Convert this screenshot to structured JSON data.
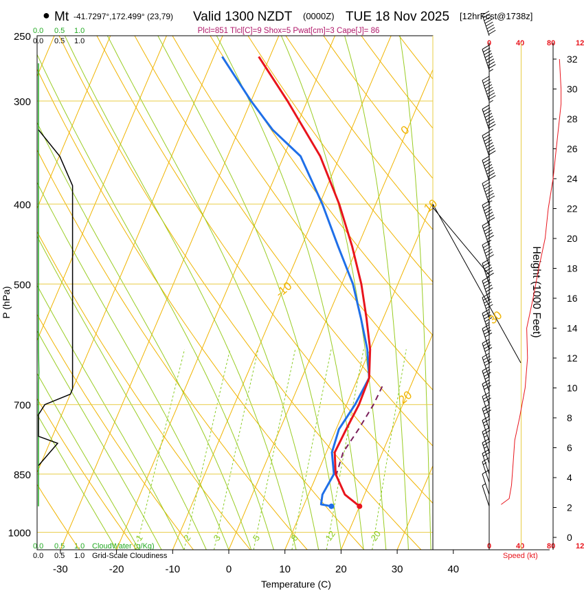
{
  "header": {
    "station_marker": "●",
    "station_code": "Mt",
    "coords": "-41.7297°,172.499° (23,79)",
    "title_valid": "Valid 1300 NZDT",
    "title_utc": "(0000Z)",
    "title_date": "TUE 18 Nov 2025",
    "forecast": "[12hrFcst@1738z]",
    "indices": "Plcl=851 Tlcl[C]=9 Shox=5 Pwat[cm]=3 Cape[J]= 86"
  },
  "left_strip": {
    "cloudwater_ticks": [
      "0.0",
      "0.5",
      "1.0"
    ],
    "cloudiness_ticks": [
      "0.0",
      "0.5",
      "1.0"
    ],
    "cloudwater_label": "CloudWater (g/Kg)",
    "cloudiness_label": "Grid-Scale Cloudiness"
  },
  "wind_panel": {
    "speed_ticks": [
      "0",
      "40",
      "80",
      "12"
    ],
    "speed_label": "Speed (kt)"
  },
  "colors": {
    "temperature": "#e8141c",
    "dewpoint": "#1f6fe8",
    "parcel": "#7a1f5a",
    "isotherm": "#f0b400",
    "dry_adiabat": "#f0b400",
    "moist_adiabat": "#99cc22",
    "mixing_ratio": "#88cc22",
    "cloudwater": "#22aa22",
    "cloudiness": "#000000",
    "wind_speed": "#e8141c",
    "header_indices": "#b0186a"
  },
  "chart_data": {
    "type": "skew-t",
    "xlabel": "Temperature (C)",
    "ylabel": "P (hPa)",
    "y2label": "Height (1000 Feet)",
    "xlim": [
      -35,
      45
    ],
    "ylim": [
      1050,
      250
    ],
    "x_ticks": [
      "-30",
      "-20",
      "-10",
      "0",
      "10",
      "20",
      "30",
      "40"
    ],
    "y_ticks": [
      {
        "p": 250,
        "label": "250"
      },
      {
        "p": 300,
        "label": "300"
      },
      {
        "p": 400,
        "label": "400"
      },
      {
        "p": 500,
        "label": "500"
      },
      {
        "p": 700,
        "label": "700"
      },
      {
        "p": 850,
        "label": "850"
      },
      {
        "p": 1000,
        "label": "1000"
      }
    ],
    "height_ticks_kft": [
      "0",
      "2",
      "4",
      "6",
      "8",
      "10",
      "12",
      "14",
      "16",
      "18",
      "20",
      "22",
      "24",
      "26",
      "28",
      "30",
      "32"
    ],
    "isotherm_labels": [
      {
        "t": -10,
        "label": "-10"
      },
      {
        "t": 0,
        "label": "0"
      },
      {
        "t": 10,
        "label": "10"
      },
      {
        "t": 20,
        "label": "20"
      },
      {
        "t": 30,
        "label": "30"
      }
    ],
    "mixing_ratio_labels": [
      "1",
      "2",
      "3",
      "5",
      "8",
      "12",
      "20"
    ],
    "temperature_series": {
      "name": "Temperature",
      "points": [
        {
          "p": 930,
          "t": 20.0
        },
        {
          "p": 900,
          "t": 16.5
        },
        {
          "p": 850,
          "t": 13.3
        },
        {
          "p": 800,
          "t": 11.5
        },
        {
          "p": 750,
          "t": 11.8
        },
        {
          "p": 700,
          "t": 12.2
        },
        {
          "p": 650,
          "t": 12.0
        },
        {
          "p": 600,
          "t": 10.0
        },
        {
          "p": 550,
          "t": 7.0
        },
        {
          "p": 500,
          "t": 3.5
        },
        {
          "p": 450,
          "t": -1.0
        },
        {
          "p": 400,
          "t": -6.5
        },
        {
          "p": 350,
          "t": -13.5
        },
        {
          "p": 300,
          "t": -23.5
        },
        {
          "p": 265,
          "t": -32.0
        }
      ]
    },
    "dewpoint_series": {
      "name": "Dewpoint",
      "points": [
        {
          "p": 930,
          "t": 15.0
        },
        {
          "p": 925,
          "t": 13.0
        },
        {
          "p": 900,
          "t": 12.5
        },
        {
          "p": 850,
          "t": 13.0
        },
        {
          "p": 800,
          "t": 11.0
        },
        {
          "p": 750,
          "t": 10.5
        },
        {
          "p": 700,
          "t": 11.5
        },
        {
          "p": 650,
          "t": 12.0
        },
        {
          "p": 600,
          "t": 9.5
        },
        {
          "p": 550,
          "t": 6.0
        },
        {
          "p": 500,
          "t": 2.0
        },
        {
          "p": 450,
          "t": -3.5
        },
        {
          "p": 400,
          "t": -9.5
        },
        {
          "p": 350,
          "t": -17.0
        },
        {
          "p": 325,
          "t": -24.0
        },
        {
          "p": 300,
          "t": -30.0
        },
        {
          "p": 265,
          "t": -38.5
        }
      ]
    },
    "parcel_series": {
      "name": "Parcel",
      "points": [
        {
          "p": 855,
          "t": 13.5
        },
        {
          "p": 800,
          "t": 13.0
        },
        {
          "p": 750,
          "t": 14.0
        },
        {
          "p": 700,
          "t": 14.8
        },
        {
          "p": 660,
          "t": 15.0
        }
      ]
    },
    "cloudwater_profile": [
      {
        "p": 930,
        "v": 0.0
      },
      {
        "p": 660,
        "v": 0.0
      },
      {
        "p": 640,
        "v": 0.01
      },
      {
        "p": 600,
        "v": 0.0
      },
      {
        "p": 270,
        "v": 0.0
      }
    ],
    "cloudiness_profile": [
      {
        "p": 830,
        "v": 0.0
      },
      {
        "p": 780,
        "v": 0.45
      },
      {
        "p": 765,
        "v": 0.0
      },
      {
        "p": 720,
        "v": 0.0
      },
      {
        "p": 700,
        "v": 0.15
      },
      {
        "p": 680,
        "v": 0.75
      },
      {
        "p": 670,
        "v": 0.8
      },
      {
        "p": 380,
        "v": 0.8
      },
      {
        "p": 350,
        "v": 0.5
      },
      {
        "p": 325,
        "v": 0.0
      }
    ],
    "wind_barbs": [
      {
        "p": 930,
        "speed_kt": 5
      },
      {
        "p": 900,
        "speed_kt": 10
      },
      {
        "p": 870,
        "speed_kt": 15
      },
      {
        "p": 850,
        "speed_kt": 20
      },
      {
        "p": 825,
        "speed_kt": 25
      },
      {
        "p": 800,
        "speed_kt": 25
      },
      {
        "p": 775,
        "speed_kt": 25
      },
      {
        "p": 750,
        "speed_kt": 30
      },
      {
        "p": 725,
        "speed_kt": 30
      },
      {
        "p": 700,
        "speed_kt": 30
      },
      {
        "p": 675,
        "speed_kt": 35
      },
      {
        "p": 650,
        "speed_kt": 40
      },
      {
        "p": 625,
        "speed_kt": 40
      },
      {
        "p": 600,
        "speed_kt": 40
      },
      {
        "p": 575,
        "speed_kt": 45
      },
      {
        "p": 550,
        "speed_kt": 50
      },
      {
        "p": 525,
        "speed_kt": 55
      },
      {
        "p": 500,
        "speed_kt": 60
      },
      {
        "p": 475,
        "speed_kt": 60
      },
      {
        "p": 450,
        "speed_kt": 65
      },
      {
        "p": 425,
        "speed_kt": 70
      },
      {
        "p": 400,
        "speed_kt": 75
      },
      {
        "p": 375,
        "speed_kt": 80
      },
      {
        "p": 350,
        "speed_kt": 80
      },
      {
        "p": 325,
        "speed_kt": 85
      },
      {
        "p": 300,
        "speed_kt": 85
      },
      {
        "p": 275,
        "speed_kt": 85
      },
      {
        "p": 250,
        "speed_kt": 80
      }
    ],
    "wind_speed_profile": [
      {
        "h_kft": 2.2,
        "speed_kt": 15
      },
      {
        "h_kft": 2.6,
        "speed_kt": 25
      },
      {
        "h_kft": 3.5,
        "speed_kt": 28
      },
      {
        "h_kft": 5.0,
        "speed_kt": 30
      },
      {
        "h_kft": 6.5,
        "speed_kt": 32
      },
      {
        "h_kft": 8.0,
        "speed_kt": 38
      },
      {
        "h_kft": 10.0,
        "speed_kt": 45
      },
      {
        "h_kft": 12.0,
        "speed_kt": 48
      },
      {
        "h_kft": 14.0,
        "speed_kt": 47
      },
      {
        "h_kft": 16.0,
        "speed_kt": 55
      },
      {
        "h_kft": 18.0,
        "speed_kt": 62
      },
      {
        "h_kft": 20.0,
        "speed_kt": 70
      },
      {
        "h_kft": 22.0,
        "speed_kt": 74
      },
      {
        "h_kft": 24.0,
        "speed_kt": 80
      },
      {
        "h_kft": 26.0,
        "speed_kt": 84
      },
      {
        "h_kft": 28.0,
        "speed_kt": 88
      },
      {
        "h_kft": 29.0,
        "speed_kt": 90
      },
      {
        "h_kft": 30.0,
        "speed_kt": 90
      },
      {
        "h_kft": 32.0,
        "speed_kt": 88
      }
    ]
  }
}
